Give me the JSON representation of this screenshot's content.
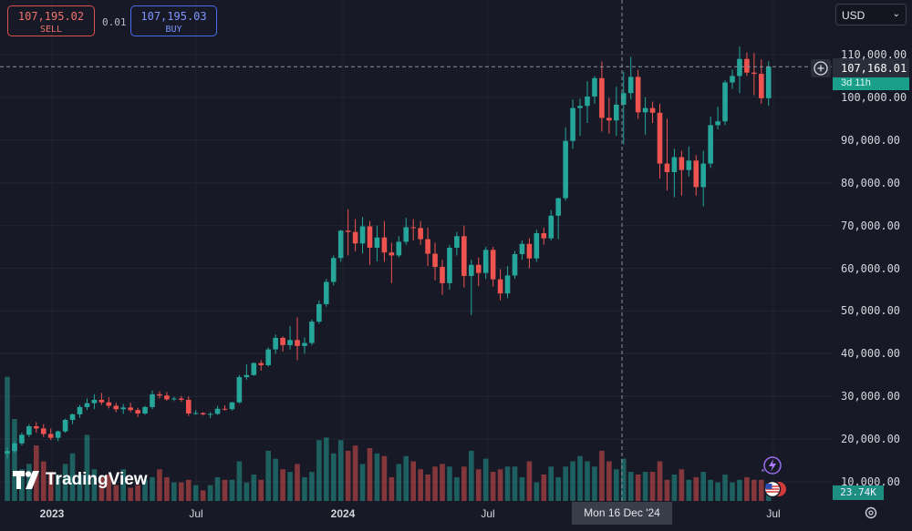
{
  "trade": {
    "sell_price": "107,195.02",
    "sell_label": "SELL",
    "buy_price": "107,195.03",
    "buy_label": "BUY",
    "spread": "0.01"
  },
  "currency": {
    "value": "USD"
  },
  "logo": {
    "text": "TradingView"
  },
  "price_tag": {
    "value": "107,168.01",
    "timer": "3d 11h"
  },
  "volume_tag": {
    "value": "23.74K"
  },
  "crosshair": {
    "date_label": "Mon 16 Dec '24",
    "price": 107168.01
  },
  "colors": {
    "up": "#26a69a",
    "down": "#ef5350",
    "background": "#171a26"
  },
  "icons": [
    "plus-icon",
    "lightning-icon",
    "us-flag-icon",
    "gear-icon",
    "chevron-down-icon"
  ],
  "chart_data": {
    "type": "candlestick",
    "interval": "1W",
    "y_ticks": [
      "110,000.00",
      "100,000.00",
      "90,000.00",
      "80,000.00",
      "70,000.00",
      "60,000.00",
      "50,000.00",
      "40,000.00",
      "30,000.00",
      "20,000.00",
      "10,000.00"
    ],
    "x_ticks": [
      "2023",
      "Jul",
      "2024",
      "Jul",
      "Jul"
    ],
    "ylim": [
      8000,
      114000
    ],
    "candles": [
      [
        16600,
        18000,
        15500,
        17200
      ],
      [
        17200,
        19500,
        16800,
        19000
      ],
      [
        19000,
        21500,
        18500,
        21000
      ],
      [
        21000,
        23500,
        20500,
        23000
      ],
      [
        23000,
        24000,
        21500,
        22500
      ],
      [
        22500,
        23500,
        20500,
        21200
      ],
      [
        21200,
        22500,
        19800,
        20300
      ],
      [
        20300,
        22000,
        19500,
        21800
      ],
      [
        21800,
        24800,
        21500,
        24500
      ],
      [
        24500,
        26000,
        23500,
        25800
      ],
      [
        25800,
        28000,
        25000,
        27500
      ],
      [
        27500,
        29500,
        26800,
        28400
      ],
      [
        28400,
        30500,
        27000,
        29200
      ],
      [
        29200,
        30800,
        28000,
        28600
      ],
      [
        28600,
        29800,
        27200,
        27800
      ],
      [
        27800,
        28500,
        26300,
        27000
      ],
      [
        27000,
        28200,
        25900,
        27400
      ],
      [
        27400,
        28500,
        26300,
        26800
      ],
      [
        26800,
        27300,
        25200,
        26000
      ],
      [
        26000,
        27800,
        25700,
        27500
      ],
      [
        27500,
        31400,
        27000,
        30500
      ],
      [
        30500,
        31200,
        29500,
        30200
      ],
      [
        30200,
        31000,
        29000,
        29300
      ],
      [
        29300,
        29900,
        28900,
        29500
      ],
      [
        29500,
        30100,
        28700,
        29200
      ],
      [
        29200,
        30000,
        25400,
        26000
      ],
      [
        26000,
        26800,
        25700,
        26100
      ],
      [
        26100,
        26300,
        25500,
        25800
      ],
      [
        25800,
        26300,
        24900,
        25900
      ],
      [
        25900,
        27800,
        25700,
        27100
      ],
      [
        27100,
        27900,
        26700,
        27000
      ],
      [
        27000,
        28700,
        26700,
        28600
      ],
      [
        28600,
        35000,
        28300,
        34500
      ],
      [
        34500,
        37500,
        33900,
        35000
      ],
      [
        35000,
        38000,
        34800,
        37800
      ],
      [
        37800,
        38500,
        36000,
        37300
      ],
      [
        37300,
        41500,
        37000,
        41000
      ],
      [
        41000,
        44500,
        40000,
        43700
      ],
      [
        43700,
        44000,
        40500,
        42000
      ],
      [
        42000,
        46500,
        41000,
        43200
      ],
      [
        43200,
        48500,
        38500,
        41800
      ],
      [
        41800,
        43800,
        40000,
        42500
      ],
      [
        42500,
        48000,
        42000,
        47500
      ],
      [
        47500,
        52500,
        47000,
        51600
      ],
      [
        51600,
        57500,
        51000,
        56800
      ],
      [
        56800,
        63000,
        56000,
        62400
      ],
      [
        62400,
        69000,
        61500,
        68800
      ],
      [
        68800,
        73800,
        63000,
        68500
      ],
      [
        68500,
        71500,
        64000,
        65800
      ],
      [
        65800,
        72000,
        63500,
        69800
      ],
      [
        69800,
        71000,
        60800,
        64800
      ],
      [
        64800,
        70000,
        61600,
        67200
      ],
      [
        67200,
        71000,
        61500,
        63700
      ],
      [
        63700,
        66000,
        56500,
        63000
      ],
      [
        63000,
        67500,
        62500,
        66200
      ],
      [
        66200,
        71800,
        65500,
        69600
      ],
      [
        69600,
        71500,
        66500,
        69400
      ],
      [
        69400,
        71000,
        65500,
        66800
      ],
      [
        66800,
        69500,
        60500,
        63400
      ],
      [
        63400,
        66000,
        57200,
        60300
      ],
      [
        60300,
        62000,
        53800,
        56500
      ],
      [
        56500,
        65500,
        55000,
        64800
      ],
      [
        64800,
        68500,
        63000,
        67500
      ],
      [
        67500,
        70000,
        55500,
        58200
      ],
      [
        58200,
        62000,
        49000,
        60800
      ],
      [
        60800,
        62500,
        55800,
        58900
      ],
      [
        58900,
        65000,
        57500,
        64300
      ],
      [
        64300,
        65000,
        55700,
        57400
      ],
      [
        57400,
        59800,
        52500,
        54100
      ],
      [
        54100,
        60500,
        53000,
        58300
      ],
      [
        58300,
        64000,
        57500,
        63300
      ],
      [
        63300,
        66500,
        62000,
        65700
      ],
      [
        65700,
        67000,
        60000,
        62300
      ],
      [
        62300,
        69000,
        61500,
        68200
      ],
      [
        68200,
        69500,
        65500,
        67000
      ],
      [
        67000,
        73600,
        66500,
        72300
      ],
      [
        72300,
        76500,
        66800,
        76400
      ],
      [
        76400,
        93000,
        75800,
        89800
      ],
      [
        89800,
        99500,
        88000,
        97500
      ],
      [
        97500,
        99700,
        91000,
        98000
      ],
      [
        98000,
        103800,
        94000,
        100200
      ],
      [
        100200,
        105000,
        98500,
        104500
      ],
      [
        104500,
        108400,
        92000,
        95200
      ],
      [
        95200,
        99900,
        91500,
        94600
      ],
      [
        94600,
        102500,
        91000,
        98300
      ],
      [
        98300,
        106000,
        89000,
        101000
      ],
      [
        101000,
        109500,
        99500,
        104800
      ],
      [
        104800,
        106500,
        95000,
        96500
      ],
      [
        96500,
        100000,
        91300,
        97500
      ],
      [
        97500,
        99000,
        94000,
        96400
      ],
      [
        96400,
        98500,
        81000,
        84500
      ],
      [
        84500,
        95000,
        78200,
        82500
      ],
      [
        82500,
        88000,
        76600,
        86000
      ],
      [
        86000,
        87500,
        77000,
        83000
      ],
      [
        83000,
        88500,
        81500,
        85200
      ],
      [
        85200,
        86500,
        77000,
        79000
      ],
      [
        79000,
        87500,
        74500,
        84500
      ],
      [
        84500,
        95500,
        83500,
        93500
      ],
      [
        93500,
        97800,
        92500,
        94400
      ],
      [
        94400,
        104000,
        93500,
        103500
      ],
      [
        103500,
        106500,
        102000,
        105000
      ],
      [
        105000,
        111900,
        101000,
        109000
      ],
      [
        109000,
        110500,
        105000,
        105800
      ],
      [
        105800,
        110400,
        100500,
        105500
      ],
      [
        105500,
        108900,
        98500,
        99800
      ],
      [
        99800,
        108500,
        98000,
        107168
      ]
    ],
    "volume": [
      47,
      31,
      12,
      14,
      21,
      15,
      11,
      10,
      14,
      18,
      10,
      25,
      12,
      9,
      10,
      6,
      12,
      5,
      6,
      8,
      9,
      12,
      9,
      7,
      7,
      8,
      6,
      4,
      6,
      9,
      8,
      8,
      15,
      7,
      10,
      8,
      19,
      16,
      12,
      11,
      14,
      9,
      11,
      23,
      24,
      18,
      23,
      19,
      21,
      14,
      20,
      18,
      17,
      9,
      14,
      17,
      15,
      12,
      10,
      13,
      14,
      13,
      9,
      13,
      19,
      12,
      16,
      11,
      12,
      13,
      13,
      9,
      15,
      7,
      10,
      13,
      9,
      13,
      15,
      17,
      15,
      13,
      19,
      15,
      12,
      16,
      11,
      10,
      11,
      11,
      15,
      8,
      10,
      12,
      8,
      9,
      11,
      8,
      7,
      10,
      7,
      8,
      9,
      8,
      8,
      6
    ],
    "volume_unit": "K-bars relative"
  }
}
